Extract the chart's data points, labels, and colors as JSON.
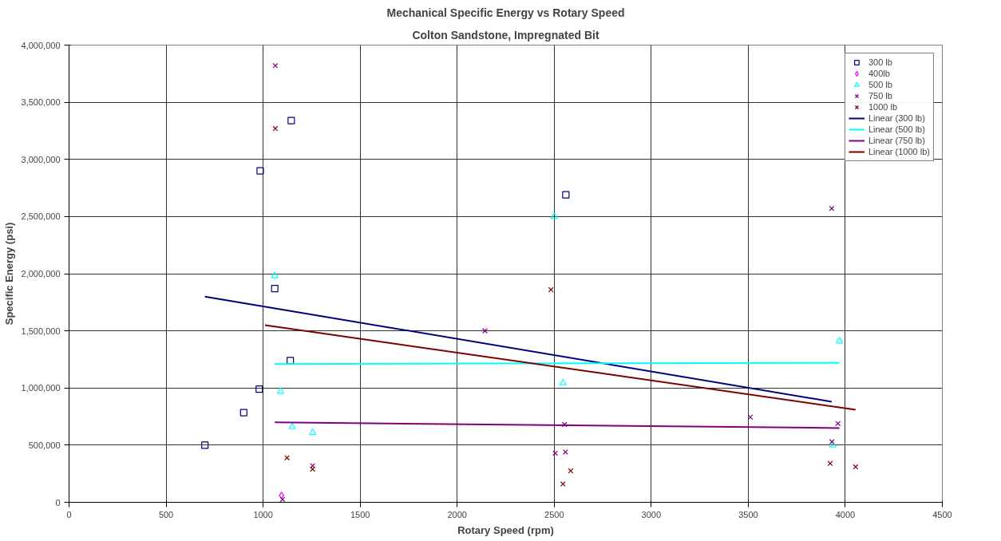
{
  "chart_data": {
    "type": "scatter",
    "title": "Mechanical Specific Energy vs Rotary Speed",
    "subtitle": "Colton Sandstone, Impregnated Bit",
    "xlabel": "Rotary Speed (rpm)",
    "ylabel": "Specific Energy (psi)",
    "xlim": [
      0,
      4500
    ],
    "xticks": [
      0,
      500,
      1000,
      1500,
      2000,
      2500,
      3000,
      3500,
      4000,
      4500
    ],
    "ylim": [
      0,
      4000000
    ],
    "yticks": [
      {
        "value": 0,
        "label": "0"
      },
      {
        "value": 500000,
        "label": "500,000"
      },
      {
        "value": 1000000,
        "label": "1,000,000"
      },
      {
        "value": 1500000,
        "label": "1,500,000"
      },
      {
        "value": 2000000,
        "label": "2,000,000"
      },
      {
        "value": 2500000,
        "label": "2,500,000"
      },
      {
        "value": 3000000,
        "label": "3,000,000"
      },
      {
        "value": 3500000,
        "label": "3,500,000"
      },
      {
        "value": 4000000,
        "label": "4,000,000"
      }
    ],
    "grid": true,
    "legend": "top right",
    "series": [
      {
        "name": "300 lb",
        "marker": "square",
        "color": "#000080",
        "x": [
          700,
          900,
          980,
          985,
          1060,
          1140,
          1145,
          2560
        ],
        "values": [
          500000,
          785000,
          990000,
          2900000,
          1870000,
          1240000,
          3340000,
          2690000
        ]
      },
      {
        "name": "400lb",
        "marker": "diamond",
        "color": "#ff00ff",
        "x": [
          1095
        ],
        "values": [
          60000
        ]
      },
      {
        "name": "500 lb",
        "marker": "triangle",
        "color": "#00ffff",
        "x": [
          1060,
          1090,
          1150,
          1255,
          2500,
          2545,
          3935,
          3970
        ],
        "values": [
          1980000,
          970000,
          660000,
          610000,
          2500000,
          1045000,
          500000,
          1410000
        ]
      },
      {
        "name": "750 lb",
        "marker": "cross",
        "color": "#800080",
        "x": [
          1063,
          1100,
          1255,
          2143,
          2505,
          2553,
          2558,
          3511,
          3930,
          3931,
          3962
        ],
        "values": [
          3820000,
          25000,
          320000,
          1500000,
          430000,
          680000,
          440000,
          745000,
          2570000,
          530000,
          690000
        ]
      },
      {
        "name": "1000 lb",
        "marker": "cross",
        "color": "#800000",
        "x": [
          1063,
          1123,
          1255,
          2483,
          2545,
          2585,
          3922,
          4053
        ],
        "values": [
          3270000,
          390000,
          290000,
          1860000,
          160000,
          275000,
          340000,
          310000
        ]
      },
      {
        "name": "Linear (300 lb)",
        "type": "line",
        "color": "#000080",
        "x": [
          700,
          3930
        ],
        "values": [
          1800000,
          880000
        ]
      },
      {
        "name": "Linear (500 lb)",
        "type": "line",
        "color": "#00ffff",
        "x": [
          1060,
          3970
        ],
        "values": [
          1210000,
          1220000
        ]
      },
      {
        "name": "Linear (750 lb)",
        "type": "line",
        "color": "#800080",
        "x": [
          1060,
          3970
        ],
        "values": [
          700000,
          650000
        ]
      },
      {
        "name": "Linear (1000 lb)",
        "type": "line",
        "color": "#800000",
        "x": [
          1010,
          4053
        ],
        "values": [
          1550000,
          810000
        ]
      }
    ]
  }
}
